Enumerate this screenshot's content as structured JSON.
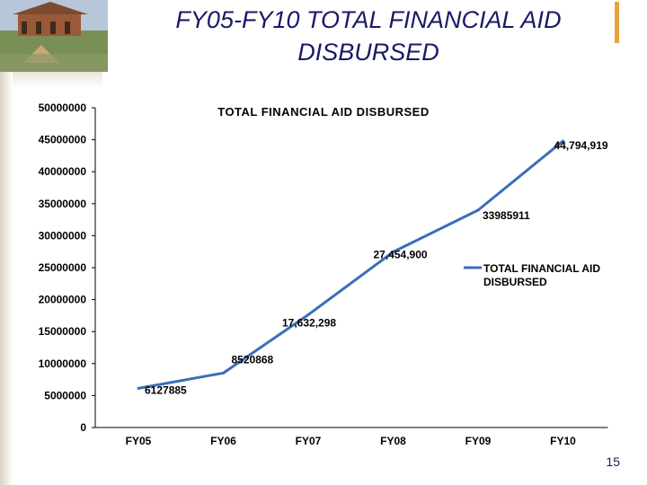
{
  "slide": {
    "title_line1": "FY05-FY10 TOTAL FINANCIAL AID",
    "title_line2": "DISBURSED",
    "page_number": "15",
    "photo_icon": "campus-building-photo",
    "accent_color": "#e8a33d",
    "title_color": "#1a1a66"
  },
  "chart_data": {
    "type": "line",
    "title": "TOTAL FINANCIAL AID DISBURSED",
    "categories": [
      "FY05",
      "FY06",
      "FY07",
      "FY08",
      "FY09",
      "FY10"
    ],
    "series": [
      {
        "name": "TOTAL FINANCIAL AID DISBURSED",
        "color": "#3a6fb8",
        "values": [
          6127885,
          8520868,
          17632298,
          27454900,
          33985911,
          44794919
        ],
        "data_labels": [
          "6127885",
          "8520868",
          "17,632,298",
          "27,454,900",
          "33985911",
          "44,794,919"
        ]
      }
    ],
    "y_ticks": [
      "0",
      "5000000",
      "10000000",
      "15000000",
      "20000000",
      "25000000",
      "30000000",
      "35000000",
      "40000000",
      "45000000",
      "50000000"
    ],
    "ylim": [
      0,
      50000000
    ],
    "grid": false,
    "legend_position": "right"
  }
}
